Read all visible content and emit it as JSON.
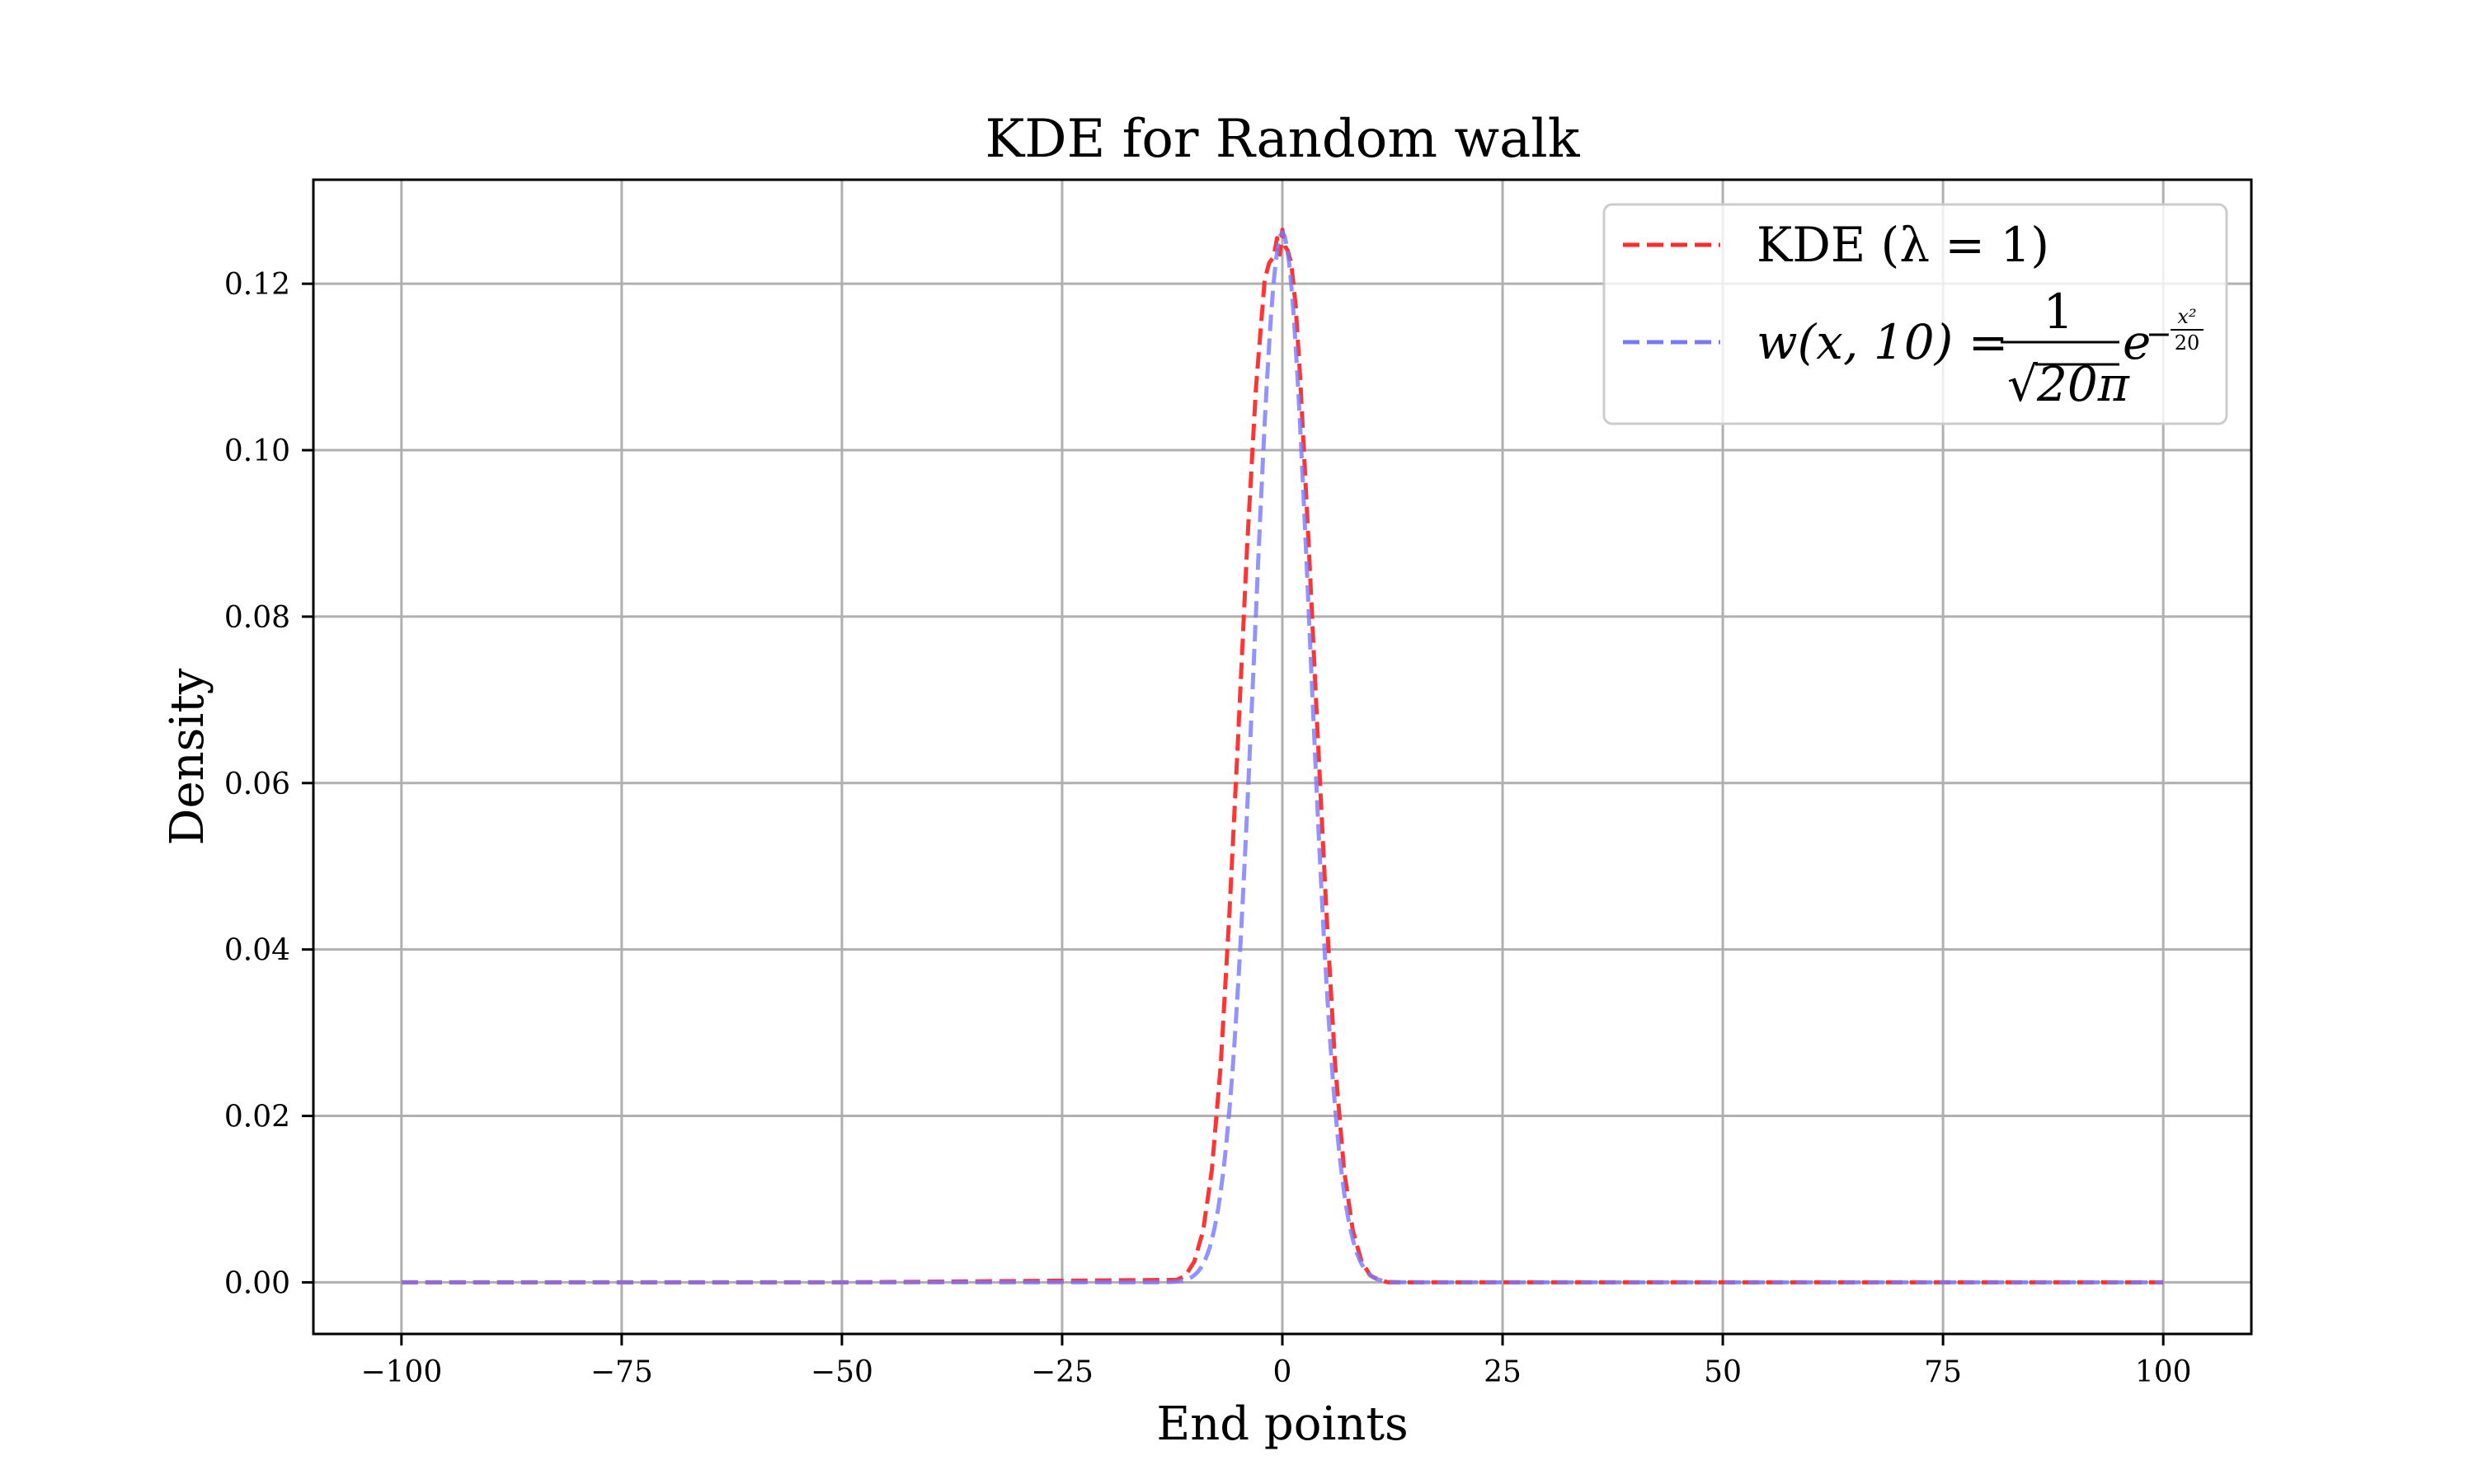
{
  "chart_data": {
    "type": "line",
    "title": "KDE for Random walk",
    "xlabel": "End points",
    "ylabel": "Density",
    "xlim": [
      -110,
      110
    ],
    "ylim": [
      -0.0062,
      0.1325
    ],
    "grid": true,
    "legend_position": "top-right",
    "x_ticks": [
      -100,
      -75,
      -50,
      -25,
      0,
      25,
      50,
      75,
      100
    ],
    "x_tick_labels": [
      "−100",
      "−75",
      "−50",
      "−25",
      "0",
      "25",
      "50",
      "75",
      "100"
    ],
    "y_ticks": [
      0.0,
      0.02,
      0.04,
      0.06,
      0.08,
      0.1,
      0.12
    ],
    "y_tick_labels": [
      "0.00",
      "0.02",
      "0.04",
      "0.06",
      "0.08",
      "0.10",
      "0.12"
    ],
    "series": [
      {
        "name": "KDE (λ = 1)",
        "color": "#ff2a2a",
        "style": "dashed",
        "x": [
          -100,
          -50,
          -12,
          -11,
          -10,
          -9,
          -8,
          -7,
          -6,
          -5,
          -4,
          -3,
          -2,
          -1.5,
          -1,
          -0.6,
          -0.3,
          0,
          0.3,
          0.6,
          1,
          1.5,
          2,
          3,
          4,
          5,
          6,
          7,
          8,
          9,
          10,
          11,
          12,
          50,
          100
        ],
        "y": [
          0.0,
          0.0,
          0.0003,
          0.0008,
          0.0025,
          0.0062,
          0.0135,
          0.026,
          0.0445,
          0.066,
          0.0885,
          0.1075,
          0.1205,
          0.1225,
          0.1232,
          0.1255,
          0.1235,
          0.1265,
          0.1245,
          0.124,
          0.1225,
          0.1175,
          0.109,
          0.0885,
          0.066,
          0.0445,
          0.026,
          0.0135,
          0.0062,
          0.0025,
          0.0008,
          0.0003,
          0.0,
          0.0,
          0.0
        ]
      },
      {
        "name": "w(x, 10) = 1/√(20π) e^(−x²/20)",
        "color": "#7878ff",
        "style": "dashed",
        "function": "gaussian",
        "sigma_squared": 10,
        "x_range": [
          -100,
          100
        ],
        "peak": 0.1262
      }
    ]
  },
  "legend": {
    "entries": [
      {
        "text": "KDE (λ = 1)",
        "color": "#ff2a2a"
      },
      {
        "lhs": "w(x, 10) =",
        "numerator": "1",
        "denominator": "20π",
        "base": "e",
        "exp_sign": "−",
        "exp_num": "x²",
        "exp_den": "20",
        "color": "#7878ff"
      }
    ]
  }
}
